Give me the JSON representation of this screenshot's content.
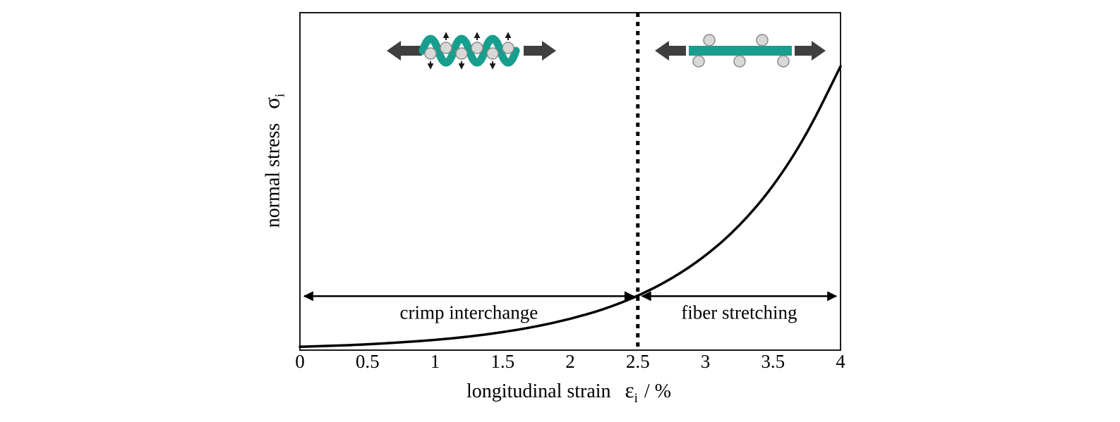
{
  "chart_data": {
    "type": "line",
    "title": "",
    "xlabel": "longitudinal strain ε_i / %",
    "ylabel": "normal stress σ_i",
    "xlim": [
      0,
      4
    ],
    "ylim": [
      0,
      1
    ],
    "grid": false,
    "legend": "none",
    "x_tick_values": [
      0,
      0.5,
      1,
      1.5,
      2,
      2.5,
      3,
      3.5,
      4
    ],
    "x_tick_labels": [
      "0",
      "0.5",
      "1",
      "1.5",
      "2",
      "2.5",
      "3",
      "3.5",
      "4"
    ],
    "series": [
      {
        "name": "normal stress vs longitudinal strain",
        "x": [
          0,
          0.25,
          0.5,
          0.75,
          1,
          1.25,
          1.5,
          1.75,
          2,
          2.25,
          2.5,
          2.75,
          3,
          3.25,
          3.5,
          3.75,
          4
        ],
        "y": [
          0.01,
          0.013,
          0.017,
          0.023,
          0.03,
          0.04,
          0.053,
          0.07,
          0.092,
          0.121,
          0.16,
          0.211,
          0.278,
          0.366,
          0.483,
          0.638,
          0.841
        ]
      }
    ],
    "transition": {
      "x": 2.5,
      "style": "vertical-dashed-line"
    },
    "region_arrow_y": 0.16,
    "regions": [
      {
        "label": "crimp interchange",
        "from": 0,
        "to": 2.5
      },
      {
        "label": "fiber stretching",
        "from": 2.5,
        "to": 4
      }
    ]
  },
  "labels": {
    "ylabel_text": "normal stress",
    "ylabel_symbol": "σ",
    "ylabel_subscript": "i",
    "xlabel_text": "longitudinal strain",
    "xlabel_symbol": "ε",
    "xlabel_subscript": "i",
    "xlabel_unit": "/ %"
  },
  "icons": {
    "left_illustration": "crimped-fiber-with-stretch-arrows",
    "right_illustration": "straight-fiber-with-stretch-arrows"
  },
  "colors": {
    "fiber_teal": "#179e8e",
    "block_arrow_gray": "#3f3f3f",
    "node_circle_fill": "#d8d8d8",
    "node_circle_stroke": "#8a8a8a",
    "curve_black": "#000000",
    "background": "#ffffff"
  }
}
